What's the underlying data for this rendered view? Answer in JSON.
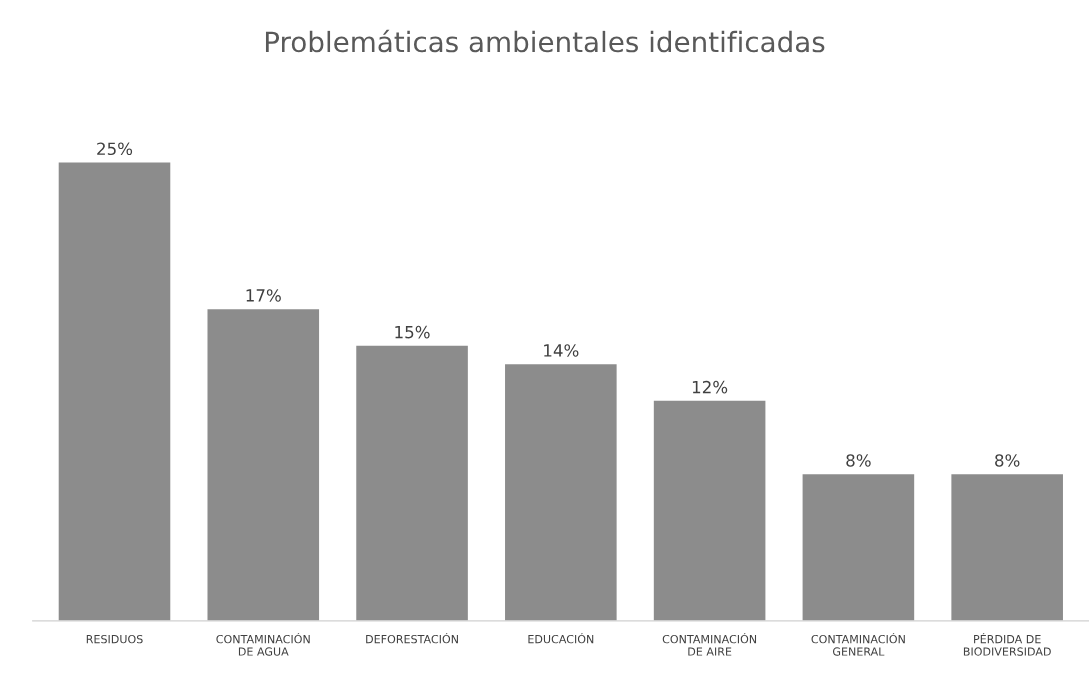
{
  "chart_data": {
    "type": "bar",
    "title": "Problemáticas ambientales identificadas",
    "categories": [
      "RESIDUOS",
      "CONTAMINACIÓN DE AGUA",
      "DEFORESTACIÓN",
      "EDUCACIÓN",
      "CONTAMINACIÓN DE AIRE",
      "CONTAMINACIÓN GENERAL",
      "PÉRDIDA DE BIODIVERSIDAD"
    ],
    "values": [
      25,
      17,
      15,
      14,
      12,
      8,
      8
    ],
    "value_labels": [
      "25%",
      "17%",
      "15%",
      "14%",
      "12%",
      "8%",
      "8%"
    ],
    "color": "#8c8c8c",
    "grid": false,
    "legend": false
  }
}
